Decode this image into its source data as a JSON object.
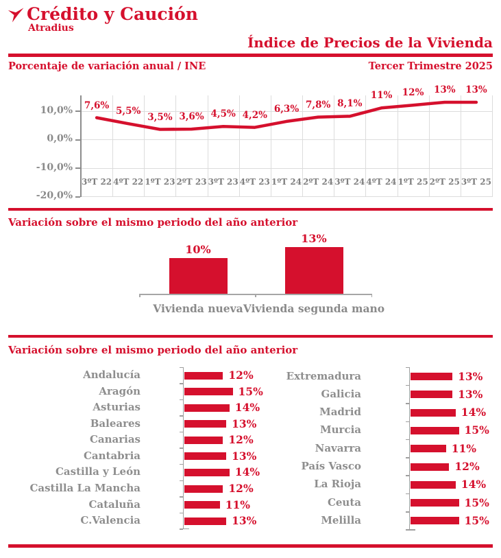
{
  "brand": {
    "name": "Crédito y Caución",
    "subname": "Atradius"
  },
  "header": {
    "title": "Índice de Precios de la Vivienda",
    "subtitle_left": "Porcentaje de variación anual / INE",
    "period": "Tercer Trimestre 2025"
  },
  "colors": {
    "red": "#D5102D",
    "gray_text": "#8A8A8A",
    "grid": "#DCDCDC",
    "axis": "#A6A6A6"
  },
  "chart_data": [
    {
      "type": "line",
      "title": "Porcentaje de variación anual / INE",
      "subtitle": "Tercer Trimestre 2025",
      "categories": [
        "3ºT 22",
        "4ºT 22",
        "1ºT 23",
        "2ºT 23",
        "3ºT 23",
        "4ºT 23",
        "1ºT 24",
        "2ºT 24",
        "3ºT 24",
        "4ºT 24",
        "1ºT 25",
        "2ºT 25",
        "3ºT 25"
      ],
      "values": [
        7.6,
        5.5,
        3.5,
        3.6,
        4.5,
        4.2,
        6.3,
        7.8,
        8.1,
        11,
        12,
        13,
        13
      ],
      "point_labels": [
        "7,6%",
        "5,5%",
        "3,5%",
        "3,6%",
        "4,5%",
        "4,2%",
        "6,3%",
        "7,8%",
        "8,1%",
        "11%",
        "12%",
        "13%",
        "13%"
      ],
      "yticks": [
        {
          "label": "10,0%",
          "value": 10
        },
        {
          "label": "0,0%",
          "value": 0
        },
        {
          "label": "-10,0%",
          "value": -10
        },
        {
          "label": "-20,0%",
          "value": -20
        }
      ],
      "ylim": [
        -20,
        15.5
      ],
      "grid": true,
      "legend": false,
      "line_color": "#D5102D"
    },
    {
      "type": "bar",
      "title": "Variación sobre el mismo periodo del año anterior",
      "categories": [
        "Vivienda nueva",
        "Vivienda segunda mano"
      ],
      "values": [
        10,
        13
      ],
      "value_labels": [
        "10%",
        "13%"
      ],
      "bar_color": "#D5102D"
    },
    {
      "type": "hbar",
      "title": "Variación sobre el mismo periodo del año anterior",
      "bar_color": "#D5102D",
      "columns": [
        {
          "categories": [
            "Andalucía",
            "Aragón",
            "Asturias",
            "Baleares",
            "Canarias",
            "Cantabria",
            "Castilla y León",
            "Castilla La Mancha",
            "Cataluña",
            "C.Valencia"
          ],
          "values": [
            12,
            15,
            14,
            13,
            12,
            13,
            14,
            12,
            11,
            13
          ],
          "value_labels": [
            "12%",
            "15%",
            "14%",
            "13%",
            "12%",
            "13%",
            "14%",
            "12%",
            "11%",
            "13%"
          ]
        },
        {
          "categories": [
            "Extremadura",
            "Galicia",
            "Madrid",
            "Murcia",
            "Navarra",
            "País Vasco",
            "La Rioja",
            "Ceuta",
            "Melilla"
          ],
          "values": [
            13,
            13,
            14,
            15,
            11,
            12,
            14,
            15,
            15
          ],
          "value_labels": [
            "13%",
            "13%",
            "14%",
            "15%",
            "11%",
            "12%",
            "14%",
            "15%",
            "15%"
          ]
        }
      ]
    }
  ]
}
